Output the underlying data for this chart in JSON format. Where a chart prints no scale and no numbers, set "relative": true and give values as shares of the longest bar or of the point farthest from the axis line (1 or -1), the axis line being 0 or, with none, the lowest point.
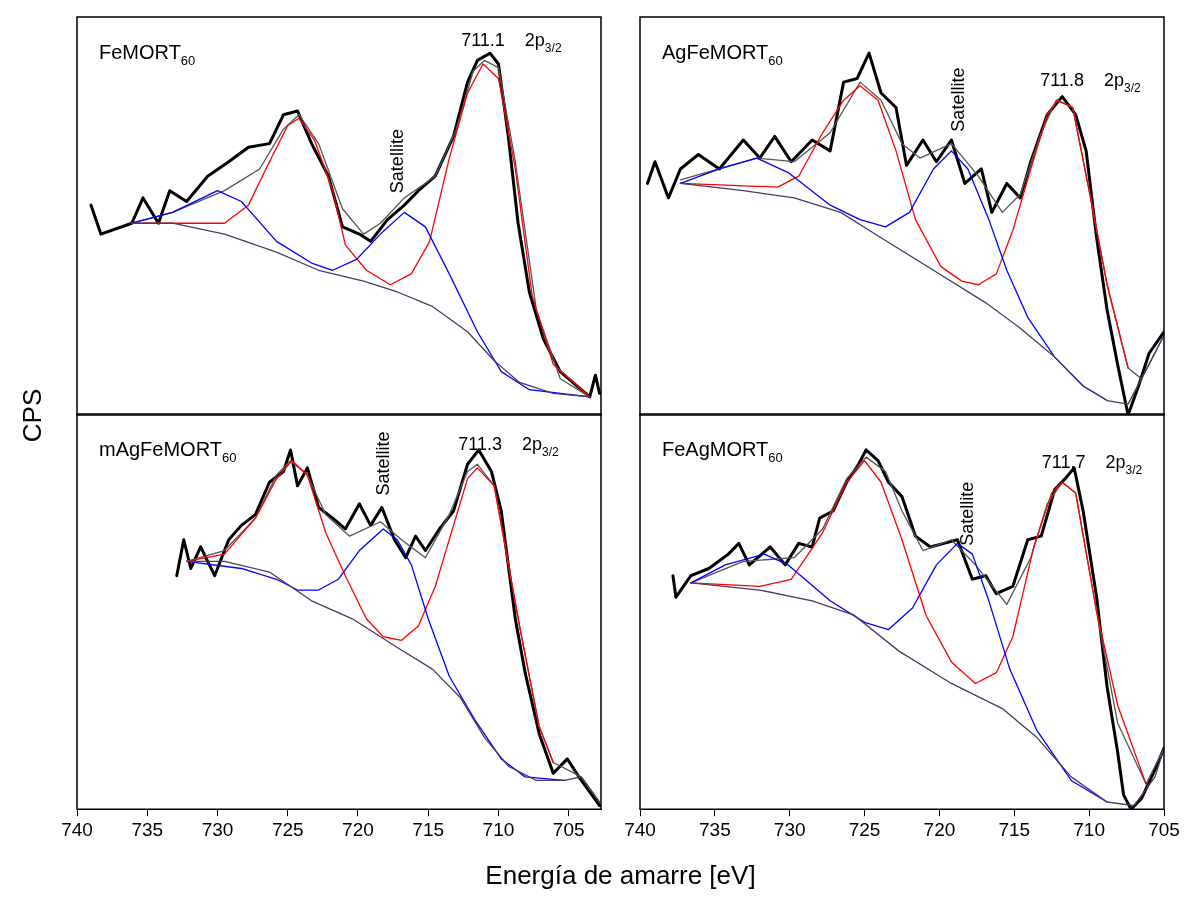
{
  "chart_data": [
    {
      "type": "line",
      "title": "FeMORT$_{60}$",
      "ylabel": "CPS",
      "relative": true,
      "xlim": [
        740,
        702.7
      ],
      "xticks": [
        740,
        735,
        730,
        725,
        720,
        715,
        710,
        705
      ],
      "tick_labels": false,
      "legend": false,
      "grid": false,
      "marker": "none",
      "line_style": "solid",
      "annotations": [
        {
          "text": "Satellite",
          "x": 717.3,
          "y": 0.58
        },
        {
          "text": "711.1",
          "x": 711.1,
          "y": 0.98
        },
        "2p$_{3/2}$"
      ],
      "series": [
        {
          "color": "#4b3b63",
          "x": [
            736.1,
            733.2,
            729.5,
            725.8,
            722.8,
            719.6,
            717.2,
            714.7,
            712.2,
            710.3,
            708.5,
            706.1,
            703.5
          ],
          "values": [
            0.53,
            0.53,
            0.5,
            0.45,
            0.4,
            0.37,
            0.34,
            0.3,
            0.23,
            0.15,
            0.09,
            0.06,
            0.05
          ]
        },
        {
          "color": "#0000ff",
          "x": [
            736.1,
            733.2,
            730.0,
            728.3,
            725.8,
            723.3,
            721.8,
            720.1,
            718.4,
            716.7,
            715.2,
            713.5,
            711.5,
            709.8,
            707.8,
            703.5
          ],
          "values": [
            0.53,
            0.56,
            0.62,
            0.59,
            0.48,
            0.42,
            0.4,
            0.43,
            0.5,
            0.56,
            0.52,
            0.39,
            0.23,
            0.12,
            0.07,
            0.05
          ]
        },
        {
          "color": "#ff0000",
          "x": [
            736.1,
            731.9,
            729.5,
            727.8,
            726.3,
            725.0,
            724.2,
            723.1,
            721.8,
            720.9,
            719.4,
            717.7,
            716.2,
            714.9,
            713.5,
            712.2,
            711.1,
            710.0,
            708.8,
            707.6,
            706.1,
            703.5
          ],
          "values": [
            0.53,
            0.53,
            0.53,
            0.58,
            0.7,
            0.8,
            0.82,
            0.76,
            0.62,
            0.47,
            0.4,
            0.36,
            0.39,
            0.48,
            0.71,
            0.89,
            0.97,
            0.93,
            0.68,
            0.33,
            0.14,
            0.05
          ]
        },
        {
          "color": "#555555",
          "x": [
            736.1,
            733.2,
            729.5,
            727.0,
            725.3,
            724.2,
            722.8,
            721.1,
            719.6,
            718.4,
            716.7,
            714.5,
            713.0,
            711.8,
            711.0,
            710.0,
            708.8,
            707.3,
            705.6,
            703.5
          ],
          "values": [
            0.53,
            0.56,
            0.62,
            0.68,
            0.79,
            0.83,
            0.75,
            0.57,
            0.5,
            0.53,
            0.6,
            0.66,
            0.79,
            0.95,
            0.98,
            0.96,
            0.7,
            0.29,
            0.1,
            0.05
          ]
        },
        {
          "color": "#000000",
          "x": [
            739.0,
            738.3,
            736.1,
            735.3,
            734.2,
            733.4,
            732.2,
            730.7,
            729.2,
            727.8,
            726.3,
            725.3,
            724.3,
            723.3,
            722.1,
            721.1,
            719.9,
            719.1,
            717.9,
            716.7,
            715.7,
            714.5,
            713.2,
            712.2,
            711.5,
            710.6,
            710.0,
            709.3,
            708.6,
            707.8,
            706.8,
            705.6,
            704.4,
            703.5,
            703.1,
            702.8
          ],
          "values": [
            0.58,
            0.5,
            0.53,
            0.6,
            0.53,
            0.62,
            0.59,
            0.66,
            0.7,
            0.74,
            0.75,
            0.83,
            0.84,
            0.75,
            0.66,
            0.52,
            0.5,
            0.48,
            0.54,
            0.58,
            0.62,
            0.66,
            0.77,
            0.92,
            0.98,
            1,
            0.97,
            0.77,
            0.53,
            0.34,
            0.21,
            0.12,
            0.08,
            0.05,
            0.11,
            0.06
          ]
        }
      ]
    },
    {
      "type": "line",
      "title": "AgFeMORT$_{60}$",
      "relative": true,
      "xlim": [
        740,
        705
      ],
      "xticks": [
        740,
        735,
        730,
        725,
        720,
        715,
        710,
        705
      ],
      "tick_labels": false,
      "legend": false,
      "grid": false,
      "marker": "none",
      "line_style": "solid",
      "annotations": [
        {
          "text": "Satellite",
          "x": 718.8,
          "y": 0.75
        },
        {
          "text": "711.8",
          "x": 711.8,
          "y": 0.87
        },
        "2p$_{3/2}$"
      ],
      "series": [
        {
          "color": "#4b3b63",
          "x": [
            737.3,
            733.1,
            729.7,
            726.6,
            723.9,
            720.4,
            716.9,
            714.6,
            712.3,
            710.4,
            708.8,
            707.4,
            706.0,
            705.0
          ],
          "values": [
            0.64,
            0.62,
            0.6,
            0.56,
            0.49,
            0.4,
            0.31,
            0.24,
            0.16,
            0.08,
            0.04,
            0.03,
            0.14,
            0.22
          ]
        },
        {
          "color": "#0000ff",
          "x": [
            737.3,
            734.7,
            732.2,
            730.1,
            727.3,
            725.3,
            723.6,
            722.0,
            720.4,
            719.2,
            718.1,
            716.7,
            715.5,
            714.1,
            712.3,
            710.4,
            708.8
          ],
          "values": [
            0.64,
            0.68,
            0.71,
            0.67,
            0.58,
            0.54,
            0.52,
            0.56,
            0.68,
            0.73,
            0.68,
            0.54,
            0.4,
            0.27,
            0.16,
            0.08,
            0.04
          ]
        },
        {
          "color": "#ff0000",
          "x": [
            737.3,
            730.8,
            729.4,
            727.8,
            726.4,
            725.3,
            724.1,
            722.9,
            721.6,
            719.9,
            718.5,
            717.4,
            716.2,
            715.1,
            713.9,
            712.8,
            712.1,
            711.1,
            710.0,
            708.8,
            707.4
          ],
          "values": [
            0.64,
            0.63,
            0.66,
            0.78,
            0.87,
            0.91,
            0.87,
            0.73,
            0.54,
            0.41,
            0.37,
            0.36,
            0.39,
            0.51,
            0.68,
            0.83,
            0.87,
            0.85,
            0.62,
            0.36,
            0.13
          ]
        },
        {
          "color": "#555555",
          "x": [
            737.3,
            732.2,
            729.7,
            727.3,
            725.3,
            723.9,
            722.5,
            721.3,
            719.2,
            717.4,
            715.8,
            714.6,
            713.2,
            712.2,
            711.1,
            710.0,
            708.8,
            707.4,
            706.5,
            705.0
          ],
          "values": [
            0.65,
            0.71,
            0.7,
            0.78,
            0.92,
            0.87,
            0.75,
            0.71,
            0.75,
            0.66,
            0.56,
            0.61,
            0.78,
            0.87,
            0.85,
            0.62,
            0.36,
            0.13,
            0.1,
            0.22
          ]
        },
        {
          "color": "#000000",
          "x": [
            739.5,
            739.0,
            738.1,
            737.3,
            736.1,
            734.7,
            733.1,
            732.0,
            731.0,
            729.9,
            728.5,
            727.3,
            726.4,
            725.5,
            724.7,
            723.9,
            722.9,
            722.2,
            721.1,
            720.2,
            719.2,
            718.3,
            717.2,
            716.5,
            715.5,
            714.6,
            713.9,
            712.8,
            711.8,
            710.9,
            710.2,
            709.5,
            708.8,
            708.1,
            707.4,
            706.7,
            706.0,
            705.0
          ],
          "values": [
            0.64,
            0.7,
            0.6,
            0.68,
            0.72,
            0.68,
            0.76,
            0.71,
            0.77,
            0.7,
            0.76,
            0.73,
            0.92,
            0.93,
            1,
            0.89,
            0.85,
            0.69,
            0.76,
            0.7,
            0.76,
            0.64,
            0.68,
            0.56,
            0.64,
            0.6,
            0.7,
            0.83,
            0.88,
            0.83,
            0.73,
            0.49,
            0.29,
            0.14,
            0,
            0.08,
            0.17,
            0.23
          ]
        }
      ]
    },
    {
      "type": "line",
      "title": "mAgFeMORT$_{60}$",
      "xlabel": "Energía de amarre [eV]",
      "relative": true,
      "xlim": [
        740,
        702.7
      ],
      "xticks": [
        740,
        735,
        730,
        725,
        720,
        715,
        710,
        705
      ],
      "tick_labels": "x",
      "legend": false,
      "grid": false,
      "marker": "none",
      "line_style": "solid",
      "annotations": [
        {
          "text": "Satellite",
          "x": 718.3,
          "y": 0.84
        },
        {
          "text": "711.3",
          "x": 711.3,
          "y": 0.96
        },
        "2p$_{3/2}$"
      ],
      "series": [
        {
          "color": "#4b3b63",
          "x": [
            732.2,
            729.5,
            726.3,
            723.3,
            720.4,
            717.2,
            714.7,
            712.7,
            711.0,
            709.3,
            707.3,
            705.3,
            704.1,
            702.8
          ],
          "values": [
            0.69,
            0.69,
            0.66,
            0.58,
            0.53,
            0.45,
            0.39,
            0.31,
            0.2,
            0.12,
            0.08,
            0.08,
            0.09,
            0.02
          ]
        },
        {
          "color": "#0000ff",
          "x": [
            732.2,
            728.3,
            725.8,
            724.3,
            722.8,
            721.4,
            719.9,
            718.2,
            717.2,
            716.2,
            715.0,
            713.5,
            711.7,
            709.8,
            708.1,
            705.3
          ],
          "values": [
            0.69,
            0.67,
            0.64,
            0.61,
            0.61,
            0.64,
            0.72,
            0.78,
            0.75,
            0.68,
            0.53,
            0.37,
            0.25,
            0.14,
            0.09,
            0.08
          ]
        },
        {
          "color": "#ff0000",
          "x": [
            732.2,
            729.5,
            727.3,
            725.8,
            724.7,
            723.6,
            722.3,
            720.9,
            719.4,
            718.2,
            716.9,
            715.7,
            714.5,
            713.2,
            712.2,
            711.5,
            710.3,
            708.5,
            707.1,
            706.1
          ],
          "values": [
            0.69,
            0.71,
            0.81,
            0.92,
            0.97,
            0.93,
            0.77,
            0.65,
            0.53,
            0.48,
            0.47,
            0.51,
            0.62,
            0.79,
            0.92,
            0.95,
            0.9,
            0.51,
            0.23,
            0.13
          ]
        },
        {
          "color": "#555555",
          "x": [
            732.2,
            729.5,
            727.3,
            725.8,
            724.8,
            723.6,
            722.3,
            720.6,
            718.4,
            716.9,
            715.2,
            713.5,
            712.2,
            711.5,
            710.3,
            708.5,
            707.1,
            706.1,
            704.1,
            702.8
          ],
          "values": [
            0.69,
            0.72,
            0.81,
            0.93,
            0.97,
            0.93,
            0.82,
            0.76,
            0.8,
            0.75,
            0.7,
            0.82,
            0.94,
            0.96,
            0.9,
            0.51,
            0.23,
            0.13,
            0.09,
            0.02
          ]
        },
        {
          "color": "#000000",
          "x": [
            732.9,
            732.4,
            731.9,
            731.2,
            730.2,
            729.2,
            728.3,
            727.3,
            726.3,
            725.3,
            724.8,
            724.3,
            723.6,
            722.8,
            721.8,
            720.9,
            719.9,
            719.1,
            718.3,
            717.4,
            716.6,
            715.9,
            715.2,
            714.2,
            713.2,
            712.2,
            711.4,
            710.5,
            709.8,
            708.8,
            708.1,
            707.1,
            706.1,
            705.1,
            704.1,
            702.8
          ],
          "values": [
            0.65,
            0.75,
            0.67,
            0.73,
            0.65,
            0.75,
            0.79,
            0.82,
            0.91,
            0.94,
            1,
            0.9,
            0.95,
            0.84,
            0.81,
            0.78,
            0.85,
            0.79,
            0.84,
            0.75,
            0.7,
            0.76,
            0.72,
            0.78,
            0.83,
            0.96,
            1,
            0.94,
            0.83,
            0.53,
            0.38,
            0.21,
            0.1,
            0.14,
            0.08,
            0.01
          ]
        }
      ]
    },
    {
      "type": "line",
      "title": "FeAgMORT$_{60}$",
      "relative": true,
      "xlim": [
        740,
        705
      ],
      "xticks": [
        740,
        735,
        730,
        725,
        720,
        715,
        710,
        705
      ],
      "tick_labels": "x",
      "legend": false,
      "grid": false,
      "marker": "none",
      "line_style": "solid",
      "annotations": [
        {
          "text": "Satellite",
          "x": 718.2,
          "y": 0.7
        },
        {
          "text": "711.7",
          "x": 711.7,
          "y": 0.91
        },
        "2p$_{3/2}$"
      ],
      "series": [
        {
          "color": "#4b3b63",
          "x": [
            736.6,
            732.0,
            728.5,
            725.7,
            722.7,
            719.2,
            715.8,
            713.5,
            711.2,
            708.8,
            707.0,
            705.6,
            705.0
          ],
          "values": [
            0.63,
            0.61,
            0.58,
            0.54,
            0.44,
            0.35,
            0.28,
            0.2,
            0.09,
            0.02,
            0.01,
            0.09,
            0.17
          ]
        },
        {
          "color": "#0000ff",
          "x": [
            736.6,
            734.3,
            731.7,
            730.1,
            727.3,
            725.0,
            723.4,
            721.8,
            720.2,
            718.8,
            717.8,
            716.7,
            715.3,
            713.5,
            711.2,
            708.8
          ],
          "values": [
            0.63,
            0.68,
            0.71,
            0.68,
            0.58,
            0.52,
            0.5,
            0.56,
            0.68,
            0.74,
            0.71,
            0.58,
            0.39,
            0.22,
            0.08,
            0.02
          ]
        },
        {
          "color": "#ff0000",
          "x": [
            736.6,
            732.0,
            729.9,
            727.8,
            726.2,
            725.0,
            723.9,
            722.5,
            720.9,
            719.2,
            717.6,
            716.2,
            715.1,
            713.7,
            712.5,
            711.8,
            710.9,
            709.5,
            708.1,
            706.2
          ],
          "values": [
            0.63,
            0.62,
            0.64,
            0.77,
            0.91,
            0.97,
            0.91,
            0.75,
            0.54,
            0.41,
            0.35,
            0.38,
            0.48,
            0.73,
            0.88,
            0.91,
            0.88,
            0.55,
            0.29,
            0.07
          ]
        },
        {
          "color": "#555555",
          "x": [
            736.6,
            733.1,
            729.7,
            727.8,
            726.2,
            724.9,
            723.6,
            722.5,
            721.1,
            719.2,
            717.6,
            715.5,
            713.9,
            712.8,
            711.8,
            710.9,
            709.5,
            708.1,
            706.2,
            705.0
          ],
          "values": [
            0.63,
            0.69,
            0.7,
            0.78,
            0.92,
            0.98,
            0.94,
            0.83,
            0.72,
            0.75,
            0.68,
            0.57,
            0.7,
            0.85,
            0.91,
            0.88,
            0.55,
            0.24,
            0.07,
            0.17
          ]
        },
        {
          "color": "#000000",
          "x": [
            737.8,
            737.6,
            736.6,
            735.4,
            734.1,
            733.4,
            732.7,
            731.3,
            730.3,
            729.4,
            728.5,
            728.0,
            727.1,
            726.2,
            725.4,
            724.9,
            724.1,
            723.4,
            722.5,
            721.6,
            720.6,
            719.7,
            718.8,
            717.8,
            716.9,
            716.2,
            715.1,
            714.1,
            713.2,
            712.3,
            711.6,
            711.0,
            710.4,
            709.5,
            708.8,
            708.1,
            707.7,
            707.2,
            706.5,
            705.6,
            705.0
          ],
          "values": [
            0.65,
            0.59,
            0.65,
            0.67,
            0.71,
            0.74,
            0.68,
            0.73,
            0.68,
            0.74,
            0.73,
            0.81,
            0.83,
            0.91,
            0.96,
            1,
            0.97,
            0.91,
            0.87,
            0.76,
            0.73,
            0.74,
            0.75,
            0.64,
            0.65,
            0.6,
            0.62,
            0.75,
            0.76,
            0.89,
            0.92,
            0.95,
            0.83,
            0.59,
            0.34,
            0.16,
            0.04,
            0,
            0.03,
            0.11,
            0.17
          ]
        }
      ]
    }
  ]
}
